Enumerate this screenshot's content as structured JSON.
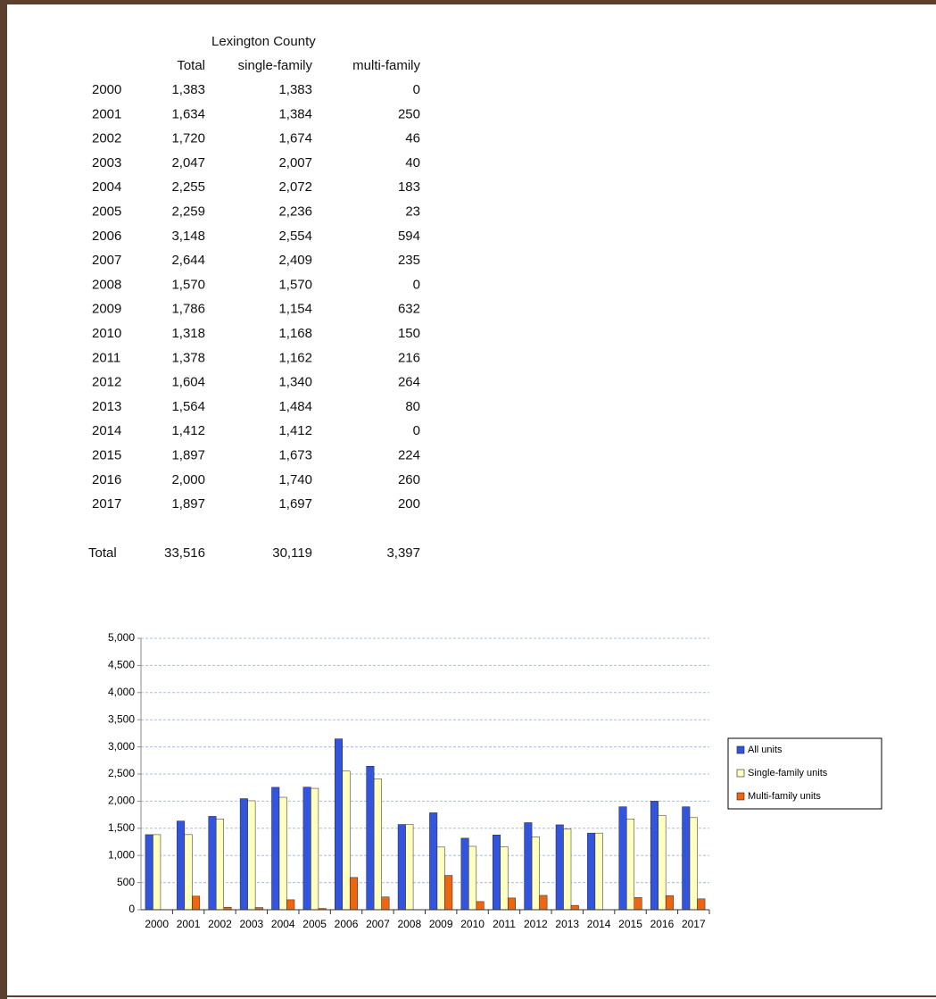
{
  "table": {
    "title": "Lexington County",
    "headers": [
      "Total",
      "single-family",
      "multi-family"
    ],
    "rows": [
      [
        "2000",
        "1,383",
        "1,383",
        "0"
      ],
      [
        "2001",
        "1,634",
        "1,384",
        "250"
      ],
      [
        "2002",
        "1,720",
        "1,674",
        "46"
      ],
      [
        "2003",
        "2,047",
        "2,007",
        "40"
      ],
      [
        "2004",
        "2,255",
        "2,072",
        "183"
      ],
      [
        "2005",
        "2,259",
        "2,236",
        "23"
      ],
      [
        "2006",
        "3,148",
        "2,554",
        "594"
      ],
      [
        "2007",
        "2,644",
        "2,409",
        "235"
      ],
      [
        "2008",
        "1,570",
        "1,570",
        "0"
      ],
      [
        "2009",
        "1,786",
        "1,154",
        "632"
      ],
      [
        "2010",
        "1,318",
        "1,168",
        "150"
      ],
      [
        "2011",
        "1,378",
        "1,162",
        "216"
      ],
      [
        "2012",
        "1,604",
        "1,340",
        "264"
      ],
      [
        "2013",
        "1,564",
        "1,484",
        "80"
      ],
      [
        "2014",
        "1,412",
        "1,412",
        "0"
      ],
      [
        "2015",
        "1,897",
        "1,673",
        "224"
      ],
      [
        "2016",
        "2,000",
        "1,740",
        "260"
      ],
      [
        "2017",
        "1,897",
        "1,697",
        "200"
      ]
    ],
    "total": [
      "Total",
      "33,516",
      "30,119",
      "3,397"
    ]
  },
  "chart_data": {
    "type": "bar",
    "categories": [
      "2000",
      "2001",
      "2002",
      "2003",
      "2004",
      "2005",
      "2006",
      "2007",
      "2008",
      "2009",
      "2010",
      "2011",
      "2012",
      "2013",
      "2014",
      "2015",
      "2016",
      "2017"
    ],
    "series": [
      {
        "name": "All units",
        "color": "#3355dd",
        "values": [
          1383,
          1634,
          1720,
          2047,
          2255,
          2259,
          3148,
          2644,
          1570,
          1786,
          1318,
          1378,
          1604,
          1564,
          1412,
          1897,
          2000,
          1897
        ]
      },
      {
        "name": "Single-family units",
        "color": "#ffffc0",
        "values": [
          1383,
          1384,
          1674,
          2007,
          2072,
          2236,
          2554,
          2409,
          1570,
          1154,
          1168,
          1162,
          1340,
          1484,
          1412,
          1673,
          1740,
          1697
        ]
      },
      {
        "name": "Multi-family units",
        "color": "#ee6611",
        "values": [
          0,
          250,
          46,
          40,
          183,
          23,
          594,
          235,
          0,
          632,
          150,
          216,
          264,
          80,
          0,
          224,
          260,
          200
        ]
      }
    ],
    "ylim": [
      0,
      5000
    ],
    "yticks": [
      0,
      500,
      {
        "value": 1000,
        "label": "1,000"
      },
      {
        "value": 1500,
        "label": "1,500"
      },
      {
        "value": 2000,
        "label": "2,000"
      },
      {
        "value": 2500,
        "label": "2,500"
      },
      {
        "value": 3000,
        "label": "3,000"
      },
      {
        "value": 3500,
        "label": "3,500"
      },
      {
        "value": 4000,
        "label": "4,000"
      },
      {
        "value": 4500,
        "label": "4,500"
      },
      {
        "value": 5000,
        "label": "5,000"
      }
    ],
    "grid": true,
    "legend": "right"
  }
}
